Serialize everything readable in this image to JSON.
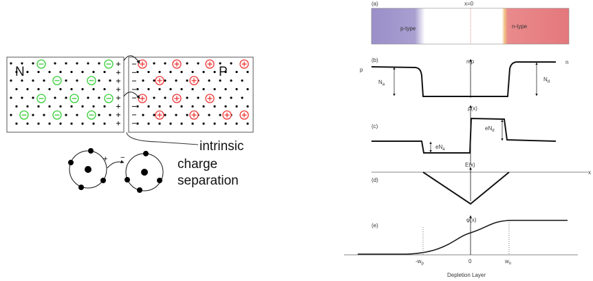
{
  "left": {
    "n_label": "N",
    "p_label": "P",
    "caption": [
      "intrinsic",
      "charge",
      "separation"
    ],
    "bond_signs": [
      "+",
      "−"
    ]
  },
  "right": {
    "a": {
      "tag": "(a)",
      "x0": "x=0",
      "p_type": "p-type",
      "n_type": "n-type"
    },
    "b": {
      "tag": "(b)",
      "axis": "n,p",
      "left": "p",
      "right": "n",
      "na": {
        "base": "N",
        "sub": "a"
      },
      "nd": {
        "base": "N",
        "sub": "d"
      }
    },
    "c": {
      "tag": "(c)",
      "axis": "ρ(x)",
      "end": {
        "base": "eN",
        "sub": "d"
      },
      "ena": {
        "base": "eN",
        "sub": "a"
      }
    },
    "d": {
      "tag": "(d)",
      "axis": "E(x)",
      "x": "x"
    },
    "e": {
      "tag": "(e)",
      "axis": "φ(x)"
    },
    "ticks": {
      "wp": {
        "base": "-w",
        "sub": "p"
      },
      "zero": "0",
      "wn": {
        "base": "w",
        "sub": "n"
      }
    },
    "footer": "Depletion Layer"
  }
}
